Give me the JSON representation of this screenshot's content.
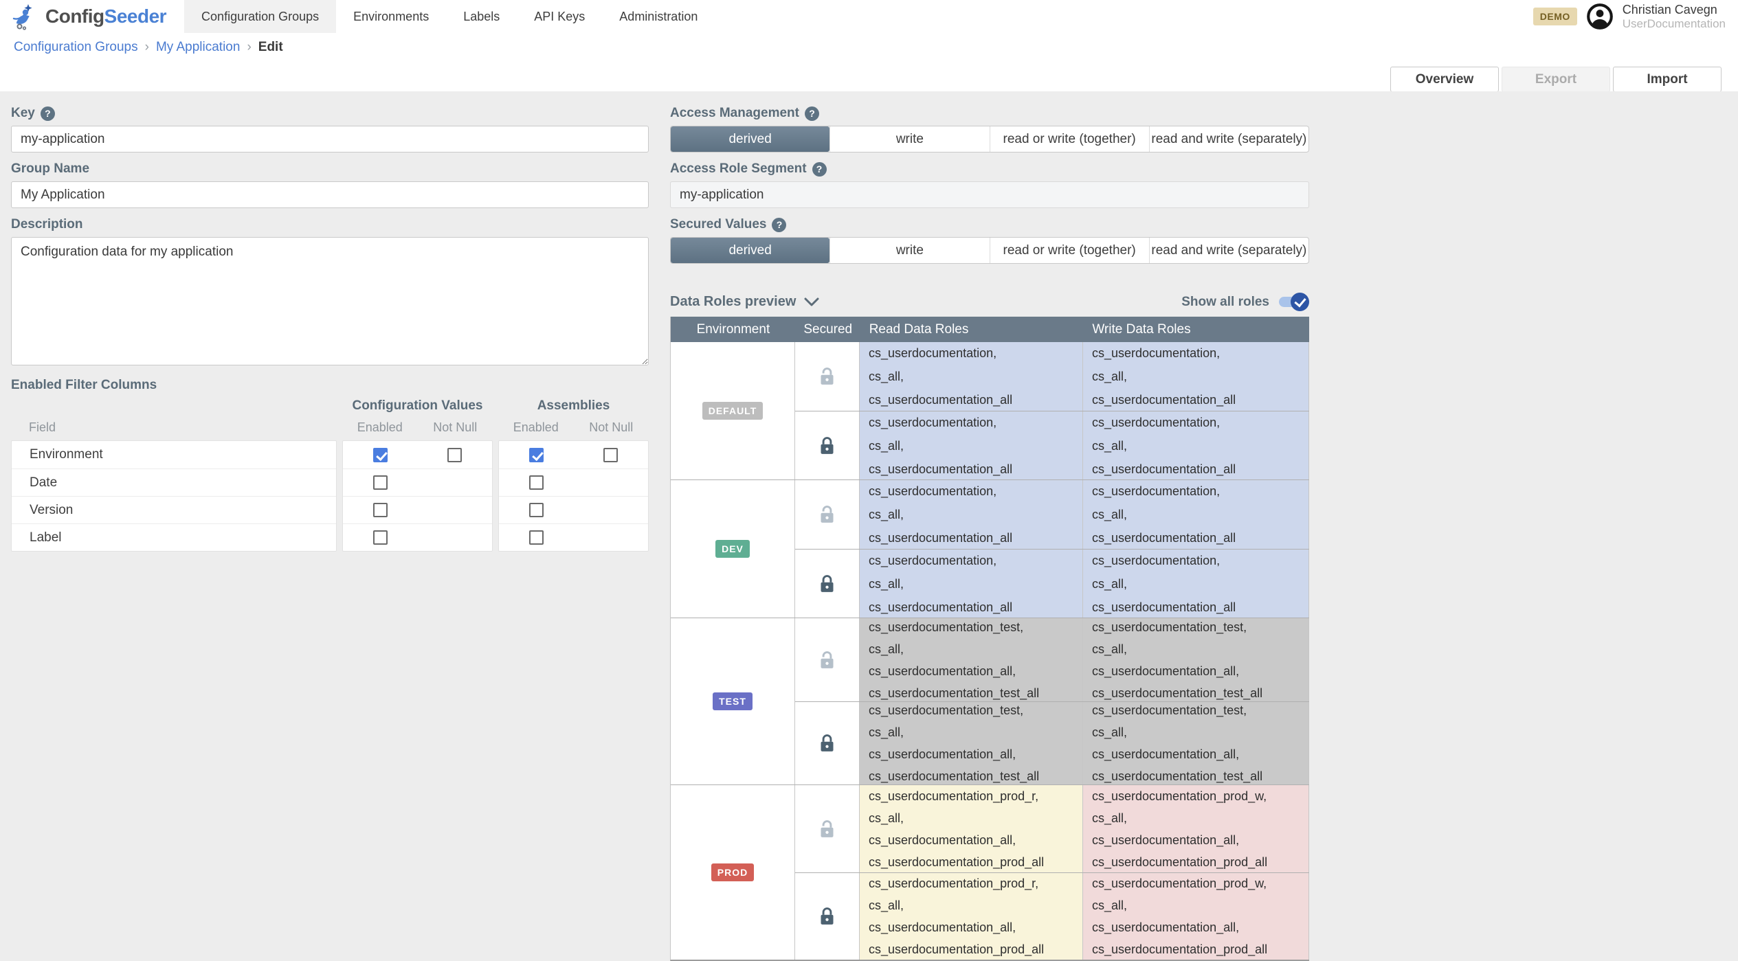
{
  "header": {
    "logo_config": "Config",
    "logo_seeder": "Seeder",
    "nav": [
      {
        "label": "Configuration Groups",
        "active": true
      },
      {
        "label": "Environments",
        "active": false
      },
      {
        "label": "Labels",
        "active": false
      },
      {
        "label": "API Keys",
        "active": false
      },
      {
        "label": "Administration",
        "active": false
      }
    ],
    "demo_badge": "DEMO",
    "user_name": "Christian Cavegn",
    "user_org": "UserDocumentation"
  },
  "icons": {
    "help": "?",
    "breadcrumb_separator": "›"
  },
  "breadcrumb": {
    "links": [
      "Configuration Groups",
      "My Application"
    ],
    "current": "Edit"
  },
  "toolbar": {
    "overview": "Overview",
    "export": "Export",
    "import": "Import"
  },
  "form": {
    "key": {
      "label": "Key",
      "value": "my-application"
    },
    "group_name": {
      "label": "Group Name",
      "value": "My Application"
    },
    "description": {
      "label": "Description",
      "value": "Configuration data for my application"
    },
    "access_management": {
      "label": "Access Management",
      "options": [
        "derived",
        "write",
        "read or write (together)",
        "read and write (separately)"
      ],
      "selected": "derived"
    },
    "access_role_segment": {
      "label": "Access Role Segment",
      "value": "my-application"
    },
    "secured_values": {
      "label": "Secured Values",
      "options": [
        "derived",
        "write",
        "read or write (together)",
        "read and write (separately)"
      ],
      "selected": "derived"
    }
  },
  "filter_columns": {
    "title": "Enabled Filter Columns",
    "group_headers": {
      "configuration_values": "Configuration Values",
      "assemblies": "Assemblies"
    },
    "sub_headers": {
      "field": "Field",
      "enabled": "Enabled",
      "not_null": "Not Null"
    },
    "rows": [
      {
        "field": "Environment",
        "cv_enabled": true,
        "cv_not_null": false,
        "as_enabled": true,
        "as_not_null": false
      },
      {
        "field": "Date",
        "cv_enabled": false,
        "cv_not_null": null,
        "as_enabled": false,
        "as_not_null": null
      },
      {
        "field": "Version",
        "cv_enabled": false,
        "cv_not_null": null,
        "as_enabled": false,
        "as_not_null": null
      },
      {
        "field": "Label",
        "cv_enabled": false,
        "cv_not_null": null,
        "as_enabled": false,
        "as_not_null": null
      }
    ]
  },
  "data_roles": {
    "title": "Data Roles preview",
    "show_all_label": "Show all roles",
    "show_all_enabled": true,
    "headers": [
      "Environment",
      "Secured",
      "Read Data Roles",
      "Write Data Roles"
    ],
    "groups": [
      {
        "env": "DEFAULT",
        "badge_color": "#bdbdbd",
        "read_bg": "#cdd7ec",
        "write_bg": "#cdd7ec",
        "rows": [
          {
            "secured": false,
            "read": [
              "cs_userdocumentation,",
              "cs_all,",
              "cs_userdocumentation_all"
            ],
            "write": [
              "cs_userdocumentation,",
              "cs_all,",
              "cs_userdocumentation_all"
            ]
          },
          {
            "secured": true,
            "read": [
              "cs_userdocumentation,",
              "cs_all,",
              "cs_userdocumentation_all"
            ],
            "write": [
              "cs_userdocumentation,",
              "cs_all,",
              "cs_userdocumentation_all"
            ]
          }
        ]
      },
      {
        "env": "DEV",
        "badge_color": "#5fae93",
        "read_bg": "#cdd7ec",
        "write_bg": "#cdd7ec",
        "rows": [
          {
            "secured": false,
            "read": [
              "cs_userdocumentation,",
              "cs_all,",
              "cs_userdocumentation_all"
            ],
            "write": [
              "cs_userdocumentation,",
              "cs_all,",
              "cs_userdocumentation_all"
            ]
          },
          {
            "secured": true,
            "read": [
              "cs_userdocumentation,",
              "cs_all,",
              "cs_userdocumentation_all"
            ],
            "write": [
              "cs_userdocumentation,",
              "cs_all,",
              "cs_userdocumentation_all"
            ]
          }
        ]
      },
      {
        "env": "TEST",
        "badge_color": "#6a70c6",
        "read_bg": "#c9c9c9",
        "write_bg": "#c9c9c9",
        "rows": [
          {
            "secured": false,
            "read": [
              "cs_userdocumentation_test,",
              "cs_all,",
              "cs_userdocumentation_all,",
              "cs_userdocumentation_test_all"
            ],
            "write": [
              "cs_userdocumentation_test,",
              "cs_all,",
              "cs_userdocumentation_all,",
              "cs_userdocumentation_test_all"
            ]
          },
          {
            "secured": true,
            "read": [
              "cs_userdocumentation_test,",
              "cs_all,",
              "cs_userdocumentation_all,",
              "cs_userdocumentation_test_all"
            ],
            "write": [
              "cs_userdocumentation_test,",
              "cs_all,",
              "cs_userdocumentation_all,",
              "cs_userdocumentation_test_all"
            ]
          }
        ]
      },
      {
        "env": "PROD",
        "badge_color": "#d35f56",
        "read_bg": "#f9f4da",
        "write_bg": "#f1dada",
        "rows": [
          {
            "secured": false,
            "read": [
              "cs_userdocumentation_prod_r,",
              "cs_all,",
              "cs_userdocumentation_all,",
              "cs_userdocumentation_prod_all"
            ],
            "write": [
              "cs_userdocumentation_prod_w,",
              "cs_all,",
              "cs_userdocumentation_all,",
              "cs_userdocumentation_prod_all"
            ]
          },
          {
            "secured": true,
            "read": [
              "cs_userdocumentation_prod_r,",
              "cs_all,",
              "cs_userdocumentation_all,",
              "cs_userdocumentation_prod_all"
            ],
            "write": [
              "cs_userdocumentation_prod_w,",
              "cs_all,",
              "cs_userdocumentation_all,",
              "cs_userdocumentation_prod_all"
            ]
          }
        ]
      }
    ]
  },
  "colors": {
    "accent_blue": "#4a7de0",
    "link_blue": "#4a7bd0",
    "table_header_bg": "#6a7a89",
    "selected_segment": "#687b8c",
    "toggle_thumb": "#2d55a5",
    "toggle_track": "#a9c3ea"
  }
}
